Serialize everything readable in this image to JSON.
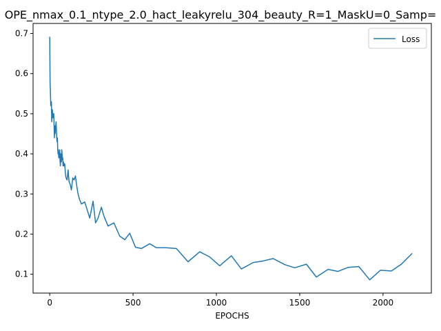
{
  "chart_data": {
    "type": "line",
    "title": "OPE_nmax_0.1_ntype_2.0_hact_leakyrelu_304_beauty_R=1_MaskU=0_Samp=",
    "xlabel": "EPOCHS",
    "ylabel": "",
    "xlim": [
      -100,
      2290
    ],
    "ylim": [
      0.053,
      0.725
    ],
    "xticks": [
      0,
      500,
      1000,
      1500,
      2000
    ],
    "yticks": [
      0.1,
      0.2,
      0.3,
      0.4,
      0.5,
      0.6,
      0.7
    ],
    "xtick_labels": [
      "0",
      "500",
      "1000",
      "1500",
      "2000"
    ],
    "ytick_labels": [
      "0.1",
      "0.2",
      "0.3",
      "0.4",
      "0.5",
      "0.6",
      "0.7"
    ],
    "grid": false,
    "legend_position": "top-right",
    "series": [
      {
        "name": "Loss",
        "color": "#1f77b4",
        "x": [
          0,
          2,
          4,
          6,
          8,
          10,
          12,
          14,
          16,
          18,
          20,
          22,
          24,
          26,
          28,
          30,
          32,
          34,
          36,
          38,
          40,
          42,
          44,
          46,
          48,
          50,
          52,
          54,
          56,
          58,
          60,
          62,
          64,
          66,
          68,
          70,
          72,
          74,
          76,
          78,
          80,
          82,
          86,
          90,
          94,
          98,
          104,
          110,
          116,
          122,
          130,
          138,
          146,
          154,
          162,
          170,
          180,
          190,
          210,
          240,
          260,
          275,
          290,
          310,
          325,
          350,
          385,
          420,
          450,
          480,
          515,
          550,
          600,
          640,
          700,
          760,
          830,
          900,
          960,
          1020,
          1090,
          1150,
          1220,
          1280,
          1340,
          1410,
          1470,
          1540,
          1600,
          1670,
          1730,
          1790,
          1855,
          1920,
          1985,
          2050,
          2110,
          2175
        ],
        "values": [
          0.692,
          0.58,
          0.556,
          0.52,
          0.52,
          0.53,
          0.48,
          0.5,
          0.51,
          0.49,
          0.5,
          0.49,
          0.5,
          0.47,
          0.44,
          0.47,
          0.45,
          0.46,
          0.47,
          0.48,
          0.46,
          0.44,
          0.43,
          0.44,
          0.41,
          0.4,
          0.41,
          0.39,
          0.4,
          0.39,
          0.41,
          0.38,
          0.37,
          0.4,
          0.39,
          0.38,
          0.41,
          0.4,
          0.385,
          0.39,
          0.37,
          0.38,
          0.37,
          0.375,
          0.35,
          0.34,
          0.335,
          0.36,
          0.33,
          0.325,
          0.31,
          0.34,
          0.335,
          0.345,
          0.32,
          0.3,
          0.285,
          0.275,
          0.28,
          0.24,
          0.282,
          0.228,
          0.24,
          0.267,
          0.245,
          0.22,
          0.228,
          0.195,
          0.186,
          0.202,
          0.167,
          0.164,
          0.176,
          0.166,
          0.166,
          0.164,
          0.131,
          0.156,
          0.143,
          0.121,
          0.146,
          0.113,
          0.129,
          0.133,
          0.139,
          0.124,
          0.116,
          0.125,
          0.093,
          0.112,
          0.107,
          0.117,
          0.119,
          0.086,
          0.11,
          0.108,
          0.125,
          0.152
        ]
      }
    ]
  }
}
